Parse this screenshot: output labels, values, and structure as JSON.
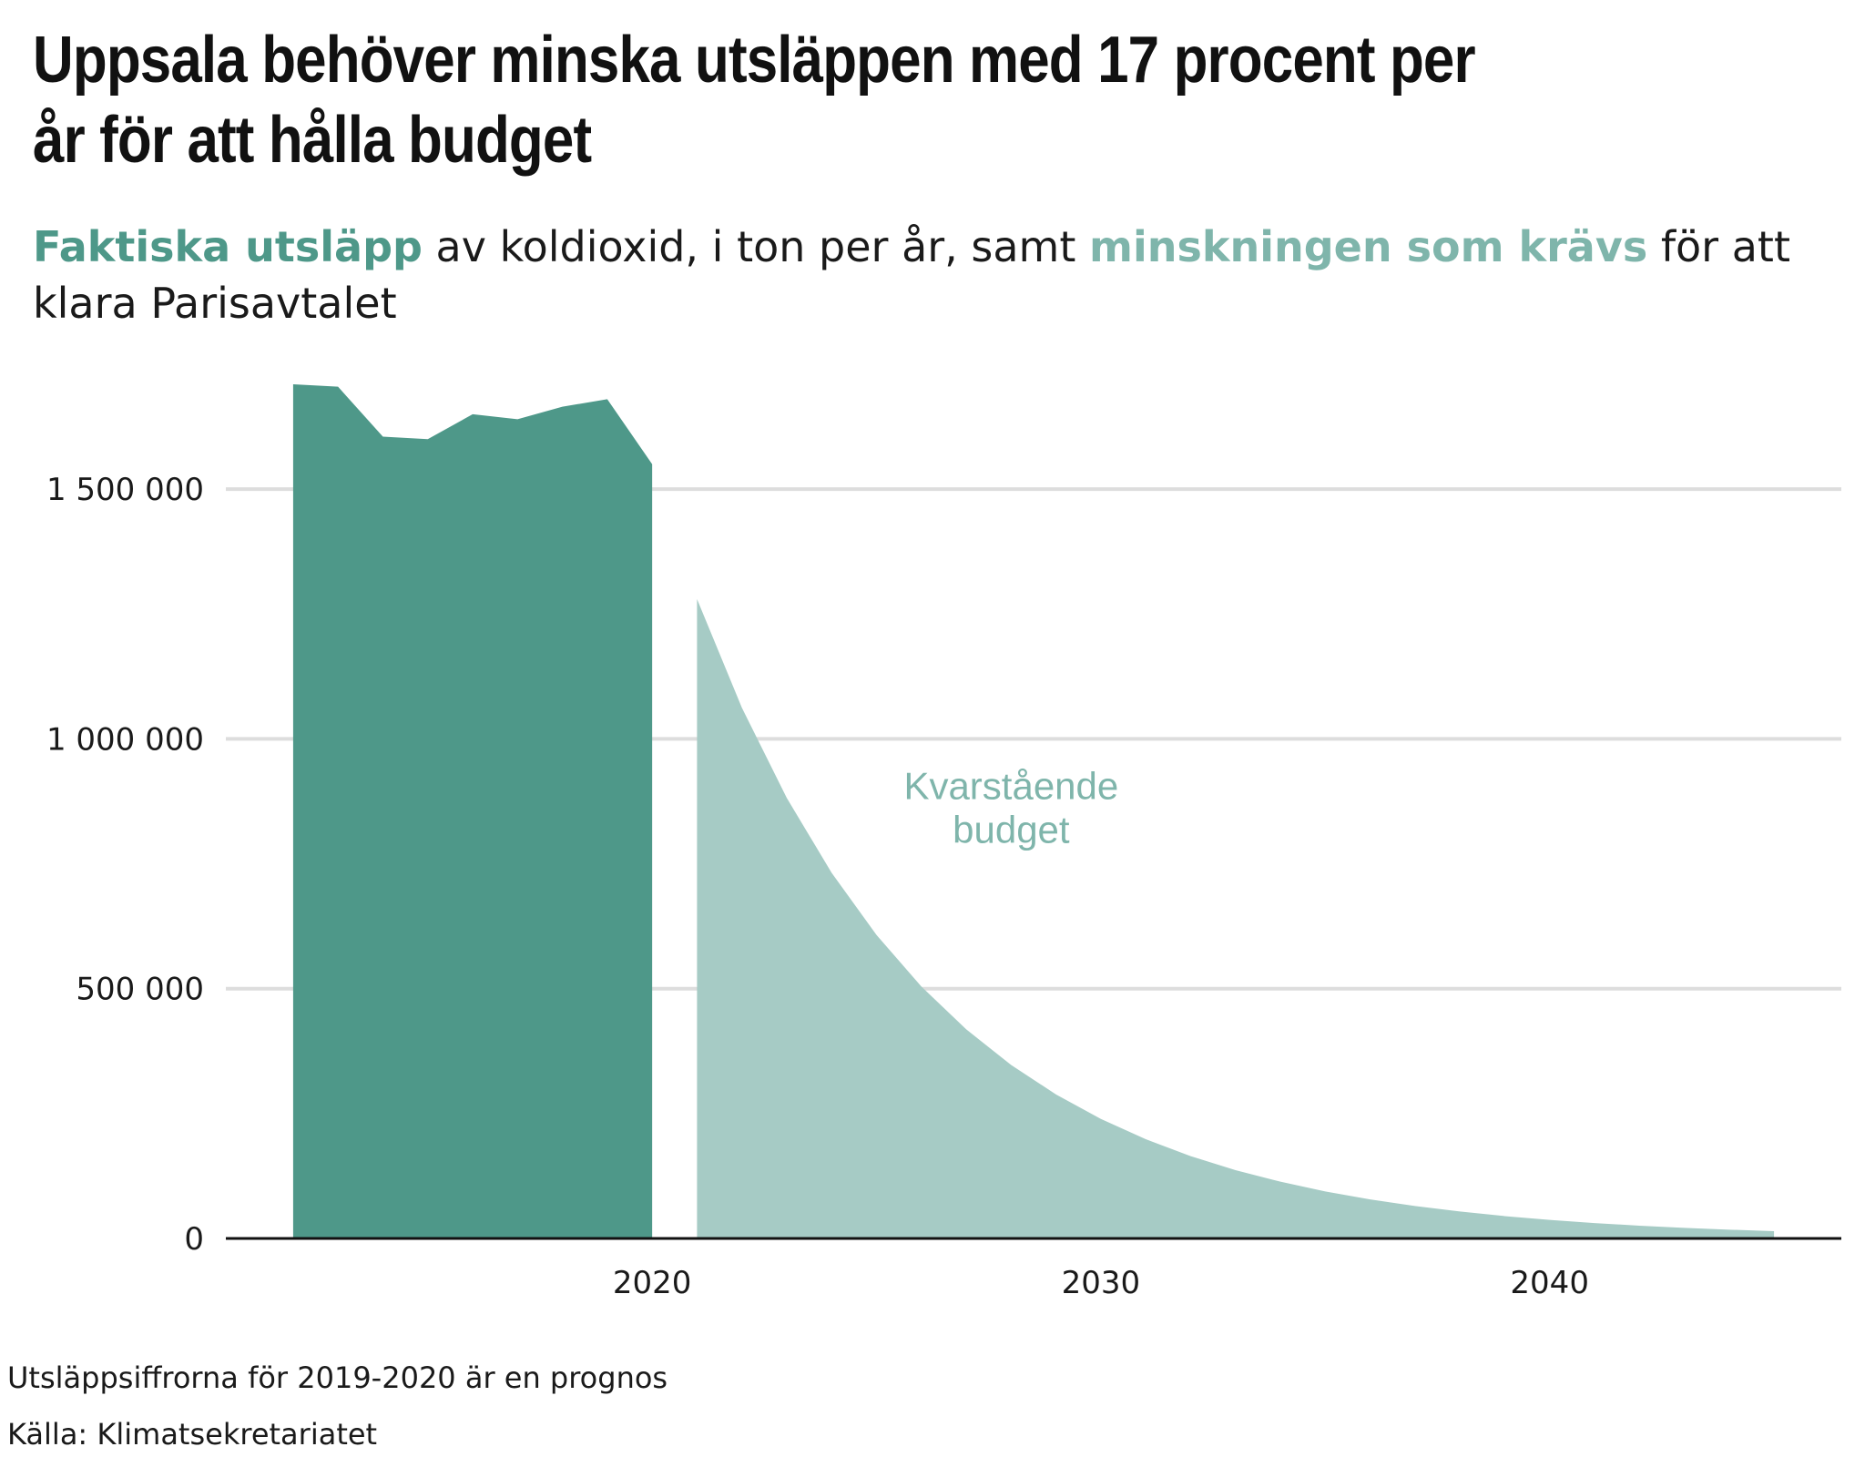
{
  "title": "Uppsala behöver minska utsläppen med 17 procent per år för att hålla budget",
  "subtitle": {
    "part1": "Faktiska utsläpp",
    "part2": " av koldioxid, i ton per år, samt ",
    "part3": "minskningen som krävs",
    "part4": " för att klara Parisavtalet"
  },
  "notes": {
    "forecast": "Utsläppsiffrorna för 2019-2020 är en prognos",
    "source": "Källa: Klimatsekretariatet"
  },
  "colors": {
    "actual": "#4e9889",
    "budget": "#a6cbc5",
    "annotation": "#7fb5ab",
    "grid": "#dddddd",
    "axis": "#111111"
  },
  "chart_data": {
    "type": "area",
    "xlim": [
      2010.5,
      2046.5
    ],
    "ylim": [
      0,
      1750000
    ],
    "x_ticks": [
      2020,
      2030,
      2040
    ],
    "x_tick_labels": [
      "2020",
      "2030",
      "2040"
    ],
    "y_ticks": [
      0,
      500000,
      1000000,
      1500000
    ],
    "y_tick_labels": [
      "0",
      "500 000",
      "1 000 000",
      "1 500 000"
    ],
    "grid": "horizontal",
    "annotation": {
      "text_lines": [
        "Kvarstående",
        "budget"
      ],
      "x": 2028,
      "y": 880000
    },
    "series": [
      {
        "x": [
          2012,
          2013,
          2014,
          2015,
          2016,
          2017,
          2018,
          2019,
          2020
        ],
        "y": [
          1710000,
          1705000,
          1605000,
          1600000,
          1650000,
          1640000,
          1665000,
          1680000,
          1550000
        ]
      },
      {
        "x": [
          2021,
          2022,
          2023,
          2024,
          2025,
          2026,
          2027,
          2028,
          2029,
          2030,
          2031,
          2032,
          2033,
          2034,
          2035,
          2036,
          2037,
          2038,
          2039,
          2040,
          2041,
          2042,
          2043,
          2044,
          2045
        ],
        "y": [
          1280000,
          1062400,
          881800,
          731900,
          607500,
          504200,
          418500,
          347300,
          288300,
          239300,
          198600,
          164800,
          136800,
          113600,
          94200,
          78200,
          64900,
          53900,
          44700,
          37100,
          30800,
          25600,
          21200,
          17600,
          14600
        ]
      }
    ]
  }
}
